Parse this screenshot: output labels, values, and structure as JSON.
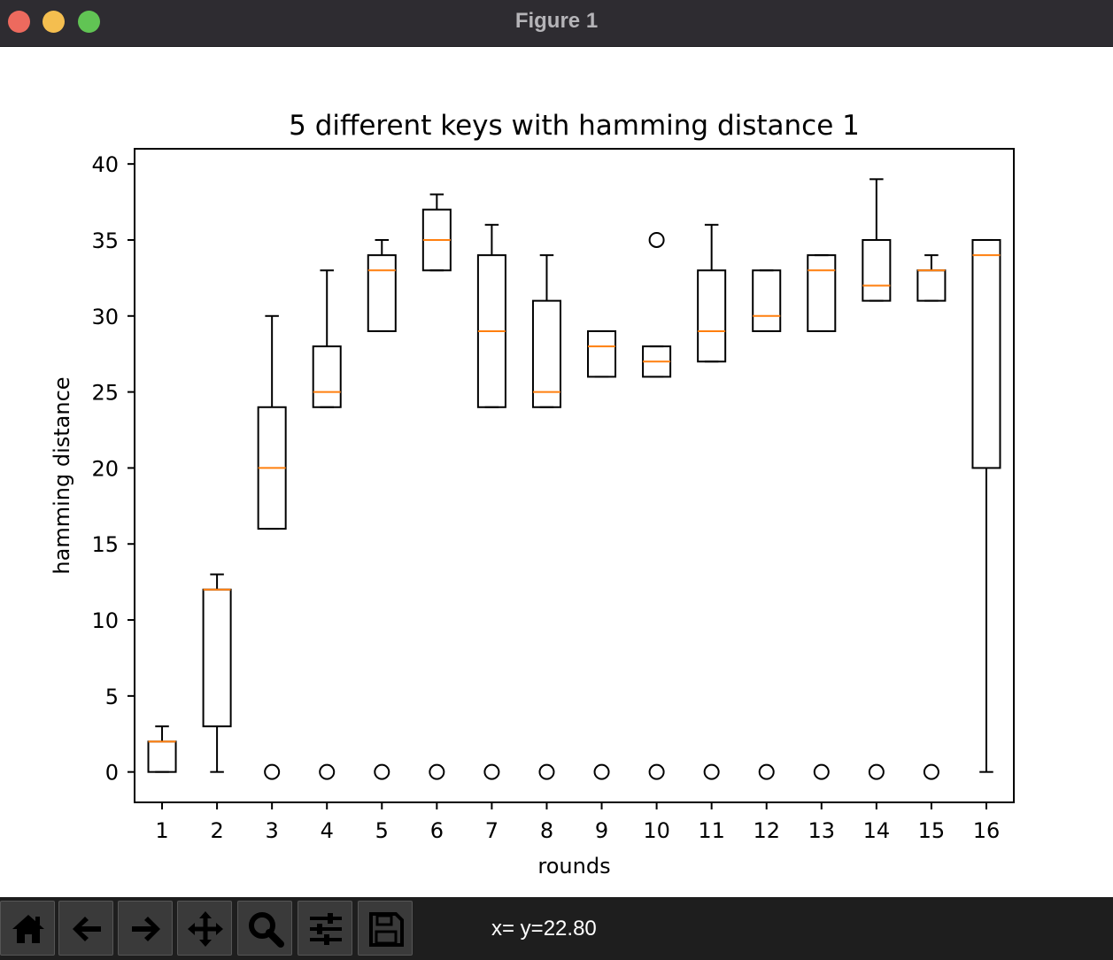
{
  "window": {
    "title": "Figure 1"
  },
  "toolbar": {
    "buttons": [
      {
        "icon": "home-icon"
      },
      {
        "icon": "back-arrow-icon"
      },
      {
        "icon": "forward-arrow-icon"
      },
      {
        "icon": "pan-move-icon"
      },
      {
        "icon": "zoom-magnifier-icon"
      },
      {
        "icon": "configure-subplots-icon"
      },
      {
        "icon": "save-floppy-icon"
      }
    ],
    "coordinates": "x= y=22.80"
  },
  "chart_data": {
    "type": "boxplot",
    "title": "5 different keys with hamming distance 1",
    "xlabel": "rounds",
    "ylabel": "hamming distance",
    "categories": [
      "1",
      "2",
      "3",
      "4",
      "5",
      "6",
      "7",
      "8",
      "9",
      "10",
      "11",
      "12",
      "13",
      "14",
      "15",
      "16"
    ],
    "ylim": [
      -2,
      41
    ],
    "yticks": [
      0,
      5,
      10,
      15,
      20,
      25,
      30,
      35,
      40
    ],
    "grid": false,
    "colors": {
      "box": "#000000",
      "median": "#ff7f0e",
      "flier": "#000000"
    },
    "boxes": [
      {
        "whislo": 0,
        "q1": 0,
        "med": 2,
        "q3": 2,
        "whishi": 3,
        "fliers": []
      },
      {
        "whislo": 0,
        "q1": 3,
        "med": 12,
        "q3": 12,
        "whishi": 13,
        "fliers": []
      },
      {
        "whislo": 16,
        "q1": 16,
        "med": 20,
        "q3": 24,
        "whishi": 30,
        "fliers": [
          0
        ]
      },
      {
        "whislo": 24,
        "q1": 24,
        "med": 25,
        "q3": 28,
        "whishi": 33,
        "fliers": [
          0
        ]
      },
      {
        "whislo": 29,
        "q1": 29,
        "med": 33,
        "q3": 34,
        "whishi": 35,
        "fliers": [
          0
        ]
      },
      {
        "whislo": 33,
        "q1": 33,
        "med": 35,
        "q3": 37,
        "whishi": 38,
        "fliers": [
          0
        ]
      },
      {
        "whislo": 24,
        "q1": 24,
        "med": 29,
        "q3": 34,
        "whishi": 36,
        "fliers": [
          0
        ]
      },
      {
        "whislo": 24,
        "q1": 24,
        "med": 25,
        "q3": 31,
        "whishi": 34,
        "fliers": [
          0
        ]
      },
      {
        "whislo": 26,
        "q1": 26,
        "med": 28,
        "q3": 29,
        "whishi": 29,
        "fliers": [
          0
        ]
      },
      {
        "whislo": 26,
        "q1": 26,
        "med": 27,
        "q3": 28,
        "whishi": 28,
        "fliers": [
          0,
          35
        ]
      },
      {
        "whislo": 27,
        "q1": 27,
        "med": 29,
        "q3": 33,
        "whishi": 36,
        "fliers": [
          0
        ]
      },
      {
        "whislo": 29,
        "q1": 29,
        "med": 30,
        "q3": 33,
        "whishi": 33,
        "fliers": [
          0
        ]
      },
      {
        "whislo": 29,
        "q1": 29,
        "med": 33,
        "q3": 34,
        "whishi": 34,
        "fliers": [
          0
        ]
      },
      {
        "whislo": 31,
        "q1": 31,
        "med": 32,
        "q3": 35,
        "whishi": 39,
        "fliers": [
          0
        ]
      },
      {
        "whislo": 31,
        "q1": 31,
        "med": 33,
        "q3": 33,
        "whishi": 34,
        "fliers": [
          0
        ]
      },
      {
        "whislo": 0,
        "q1": 20,
        "med": 34,
        "q3": 35,
        "whishi": 35,
        "fliers": []
      }
    ]
  }
}
